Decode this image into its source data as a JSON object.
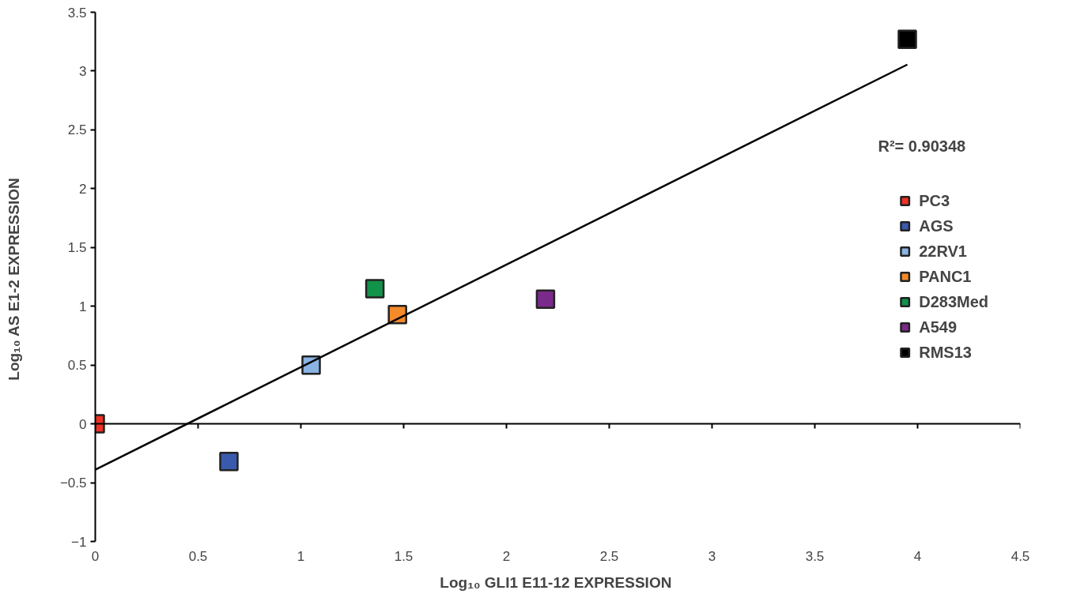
{
  "chart_data": {
    "type": "scatter",
    "xlabel": "Log₁₀ GLI1 E11-12  EXPRESSION",
    "ylabel": "Log₁₀ AS E1-2  EXPRESSION",
    "xlim": [
      0,
      4.5
    ],
    "ylim": [
      -1,
      3.5
    ],
    "xticks": [
      0,
      0.5,
      1,
      1.5,
      2,
      2.5,
      3,
      3.5,
      4,
      4.5
    ],
    "yticks": [
      -1,
      -0.5,
      0,
      0.5,
      1,
      1.5,
      2,
      2.5,
      3,
      3.5
    ],
    "grid": false,
    "legend": "right",
    "ref_lines": [
      {
        "axis": "y",
        "value": 0,
        "color": "#000000"
      }
    ],
    "annotations": [
      "R²= 0.90348"
    ],
    "series": [
      {
        "name": "PC3",
        "color": "#ee3224",
        "marker": "square",
        "x": [
          0
        ],
        "values": [
          0
        ]
      },
      {
        "name": "AGS",
        "color": "#3a5bad",
        "marker": "square",
        "x": [
          0.65
        ],
        "values": [
          -0.32
        ]
      },
      {
        "name": "22RV1",
        "color": "#8ab4e3",
        "marker": "square",
        "x": [
          1.05
        ],
        "values": [
          0.5
        ]
      },
      {
        "name": "PANC1",
        "color": "#f58a2b",
        "marker": "square",
        "x": [
          1.47
        ],
        "values": [
          0.93
        ]
      },
      {
        "name": "D283Med",
        "color": "#12934a",
        "marker": "square",
        "x": [
          1.36
        ],
        "values": [
          1.15
        ]
      },
      {
        "name": "A549",
        "color": "#7a2a8a",
        "marker": "square",
        "x": [
          2.19
        ],
        "values": [
          1.06
        ]
      },
      {
        "name": "RMS13",
        "color": "#000000",
        "marker": "square",
        "x": [
          3.95
        ],
        "values": [
          3.27
        ]
      },
      {
        "type": "line",
        "color": "#000000",
        "x": [
          0,
          3.95
        ],
        "values": [
          -0.39,
          3.055
        ]
      }
    ]
  }
}
